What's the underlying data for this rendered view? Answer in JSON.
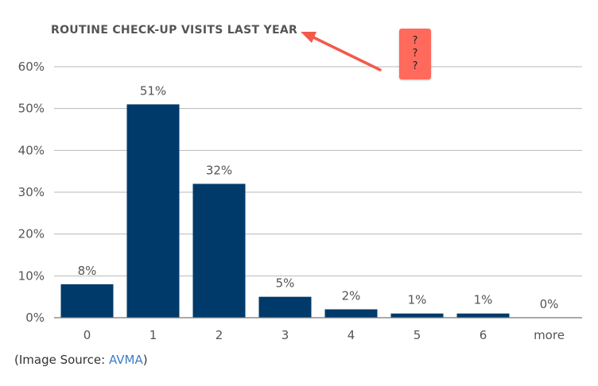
{
  "chart_data": {
    "type": "bar",
    "title": "ROUTINE CHECK-UP VISITS LAST YEAR",
    "categories": [
      "0",
      "1",
      "2",
      "3",
      "4",
      "5",
      "6",
      "more"
    ],
    "values": [
      8,
      51,
      32,
      5,
      2,
      1,
      1,
      0
    ],
    "data_labels": [
      "8%",
      "51%",
      "32%",
      "5%",
      "2%",
      "1%",
      "1%",
      "0%"
    ],
    "ylim": [
      0,
      60
    ],
    "yticks": [
      0,
      10,
      20,
      30,
      40,
      50,
      60
    ],
    "ytick_labels": [
      "0%",
      "10%",
      "20%",
      "30%",
      "40%",
      "50%",
      "60%"
    ],
    "grid": true,
    "bar_color": "#003a6b"
  },
  "annotation": {
    "lines": [
      "?",
      "?",
      "?"
    ],
    "color": "#ff6a5c",
    "arrow_color": "#f25a4a"
  },
  "source": {
    "prefix": "(Image Source: ",
    "link": "AVMA",
    "suffix": ")"
  }
}
